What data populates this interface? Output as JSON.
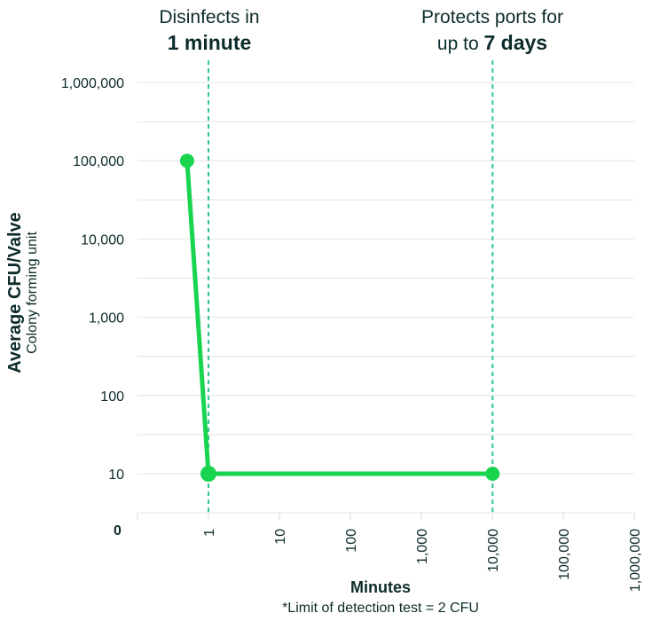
{
  "annotations": {
    "left_line1": "Disinfects in",
    "left_bold": "1 minute",
    "right_line1": "Protects ports for",
    "right_prefix": "up to ",
    "right_bold": "7 days"
  },
  "axis": {
    "y_title": "Average CFU/Valve",
    "y_subtitle": "Colony forming unit",
    "x_title": "Minutes",
    "footnote": "*Limit of detection test = 2 CFU",
    "zero_label": "0"
  },
  "colors": {
    "series": "#19d44f",
    "ref_line": "#2fc492",
    "grid": "#e4e4e4",
    "text": "#0d2b2b"
  },
  "chart_data": {
    "type": "line",
    "title": "",
    "xlabel": "Minutes",
    "ylabel": "Average CFU/Valve",
    "x_scale": "log",
    "y_scale": "log",
    "xlim": [
      0.1,
      1000000
    ],
    "ylim": [
      1,
      1000000
    ],
    "x_ticks": [
      1,
      10,
      100,
      1000,
      10000,
      100000,
      1000000
    ],
    "x_tick_labels": [
      "1",
      "10",
      "100",
      "1,000",
      "10,000",
      "100,000",
      "1,000,000"
    ],
    "y_ticks": [
      10,
      100,
      1000,
      10000,
      100000,
      1000000
    ],
    "y_tick_labels": [
      "10",
      "100",
      "1,000",
      "10,000",
      "100,000",
      "1,000,000"
    ],
    "grid": true,
    "series": [
      {
        "x": [
          0.5,
          1,
          10080
        ],
        "y": [
          100000,
          10,
          10
        ]
      }
    ],
    "reference_lines": [
      {
        "x": 1
      },
      {
        "x": 10080
      }
    ]
  }
}
